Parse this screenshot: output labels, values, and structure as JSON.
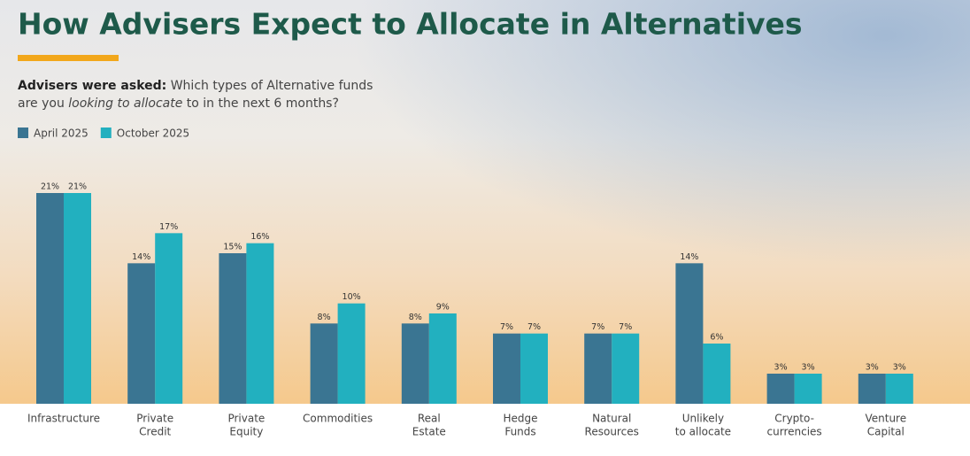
{
  "chart_data": {
    "type": "bar",
    "title": "How Advisers Expect to Allocate in Alternatives",
    "subtitle": [
      "Advisers were asked:",
      "Which types of Alternative funds",
      "are you",
      "looking to allocate",
      "to in the next 6 months?"
    ],
    "categories": [
      [
        "Infrastructure"
      ],
      [
        "Private",
        "Credit"
      ],
      [
        "Private",
        "Equity"
      ],
      [
        "Commodities"
      ],
      [
        "Real",
        "Estate"
      ],
      [
        "Hedge",
        "Funds"
      ],
      [
        "Natural",
        "Resources"
      ],
      [
        "Unlikely",
        "to allocate"
      ],
      [
        "Crypto-",
        "currencies"
      ],
      [
        "Venture",
        "Capital"
      ]
    ],
    "series": [
      {
        "name": "April 2025",
        "color": "#3a7592",
        "values": [
          21,
          14,
          15,
          8,
          8,
          7,
          7,
          14,
          3,
          3
        ],
        "value_labels": [
          "21%",
          "14%",
          "15%",
          "8%",
          "8%",
          "7%",
          "7%",
          "14%",
          "3%",
          "3%"
        ]
      },
      {
        "name": "October 2025",
        "color": "#22b0bf",
        "values": [
          21,
          17,
          16,
          10,
          9,
          7,
          7,
          6,
          3,
          3
        ],
        "value_labels": [
          "21%",
          "17%",
          "16%",
          "10%",
          "9%",
          "7%",
          "7%",
          "6%",
          "3%",
          "3%"
        ]
      }
    ],
    "ylim": [
      0,
      21
    ],
    "grid": false
  }
}
